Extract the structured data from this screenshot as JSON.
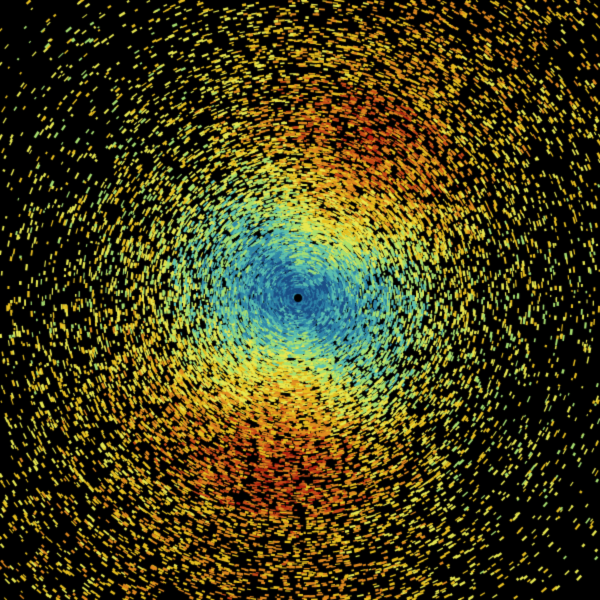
{
  "image": {
    "kind": "radar-reflectivity-sweep",
    "background": "#000000",
    "palette": [
      "#1b4f86",
      "#2f86a8",
      "#5cc0b0",
      "#a8e070",
      "#e8e850",
      "#e8c020",
      "#e08a20",
      "#c84a18",
      "#b02010"
    ],
    "center_dot_color": "#000000",
    "bright_sectors": [
      "north-east",
      "south"
    ]
  }
}
